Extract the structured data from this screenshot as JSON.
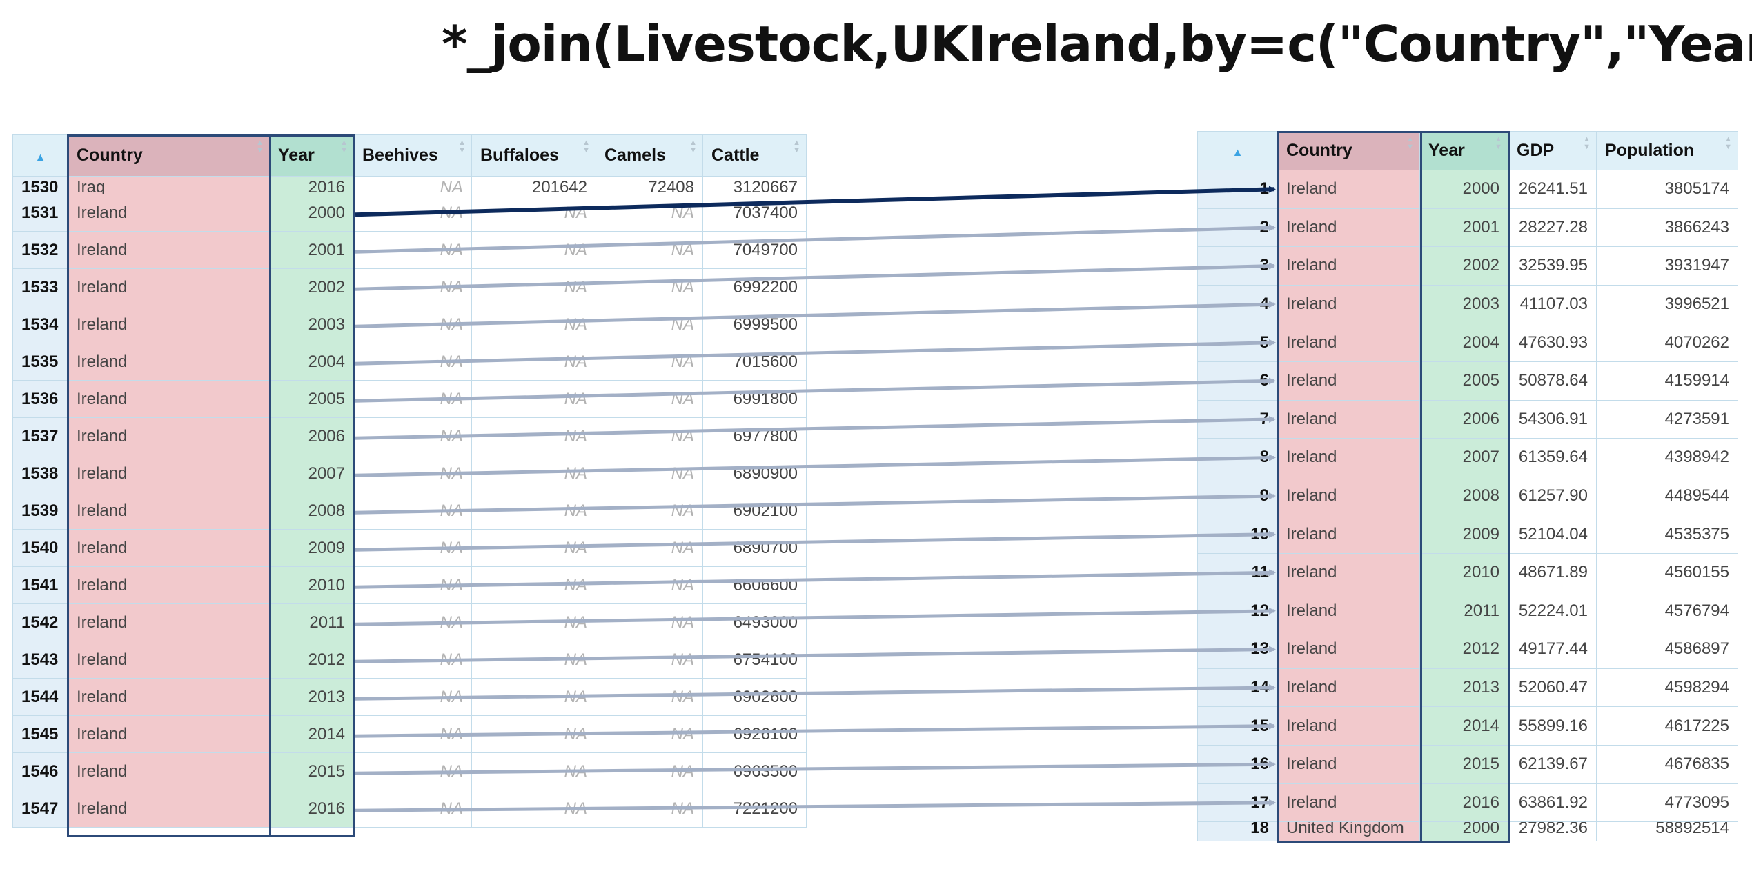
{
  "title": "*_join(Livestock,UKIreland,by=c(\"Country\",\"Year\"))",
  "livestock": {
    "columns": [
      "Country",
      "Year",
      "Beehives",
      "Buffaloes",
      "Camels",
      "Cattle"
    ],
    "top_partial": {
      "id": "1530",
      "country": "Iraq",
      "year": "2016",
      "beehives": "NA",
      "buffaloes": "201642",
      "camels": "72408",
      "cattle": "3120667"
    },
    "rows": [
      {
        "id": "1531",
        "country": "Ireland",
        "year": "2000",
        "beehives": "NA",
        "buffaloes": "NA",
        "camels": "NA",
        "cattle": "7037400"
      },
      {
        "id": "1532",
        "country": "Ireland",
        "year": "2001",
        "beehives": "NA",
        "buffaloes": "NA",
        "camels": "NA",
        "cattle": "7049700"
      },
      {
        "id": "1533",
        "country": "Ireland",
        "year": "2002",
        "beehives": "NA",
        "buffaloes": "NA",
        "camels": "NA",
        "cattle": "6992200"
      },
      {
        "id": "1534",
        "country": "Ireland",
        "year": "2003",
        "beehives": "NA",
        "buffaloes": "NA",
        "camels": "NA",
        "cattle": "6999500"
      },
      {
        "id": "1535",
        "country": "Ireland",
        "year": "2004",
        "beehives": "NA",
        "buffaloes": "NA",
        "camels": "NA",
        "cattle": "7015600"
      },
      {
        "id": "1536",
        "country": "Ireland",
        "year": "2005",
        "beehives": "NA",
        "buffaloes": "NA",
        "camels": "NA",
        "cattle": "6991800"
      },
      {
        "id": "1537",
        "country": "Ireland",
        "year": "2006",
        "beehives": "NA",
        "buffaloes": "NA",
        "camels": "NA",
        "cattle": "6977800"
      },
      {
        "id": "1538",
        "country": "Ireland",
        "year": "2007",
        "beehives": "NA",
        "buffaloes": "NA",
        "camels": "NA",
        "cattle": "6890900"
      },
      {
        "id": "1539",
        "country": "Ireland",
        "year": "2008",
        "beehives": "NA",
        "buffaloes": "NA",
        "camels": "NA",
        "cattle": "6902100"
      },
      {
        "id": "1540",
        "country": "Ireland",
        "year": "2009",
        "beehives": "NA",
        "buffaloes": "NA",
        "camels": "NA",
        "cattle": "6890700"
      },
      {
        "id": "1541",
        "country": "Ireland",
        "year": "2010",
        "beehives": "NA",
        "buffaloes": "NA",
        "camels": "NA",
        "cattle": "6606600"
      },
      {
        "id": "1542",
        "country": "Ireland",
        "year": "2011",
        "beehives": "NA",
        "buffaloes": "NA",
        "camels": "NA",
        "cattle": "6493000"
      },
      {
        "id": "1543",
        "country": "Ireland",
        "year": "2012",
        "beehives": "NA",
        "buffaloes": "NA",
        "camels": "NA",
        "cattle": "6754100"
      },
      {
        "id": "1544",
        "country": "Ireland",
        "year": "2013",
        "beehives": "NA",
        "buffaloes": "NA",
        "camels": "NA",
        "cattle": "6902600"
      },
      {
        "id": "1545",
        "country": "Ireland",
        "year": "2014",
        "beehives": "NA",
        "buffaloes": "NA",
        "camels": "NA",
        "cattle": "6926100"
      },
      {
        "id": "1546",
        "country": "Ireland",
        "year": "2015",
        "beehives": "NA",
        "buffaloes": "NA",
        "camels": "NA",
        "cattle": "6963500"
      },
      {
        "id": "1547",
        "country": "Ireland",
        "year": "2016",
        "beehives": "NA",
        "buffaloes": "NA",
        "camels": "NA",
        "cattle": "7221200"
      }
    ]
  },
  "ukireland": {
    "columns": [
      "Country",
      "Year",
      "GDP",
      "Population"
    ],
    "rows": [
      {
        "id": "1",
        "country": "Ireland",
        "year": "2000",
        "gdp": "26241.51",
        "population": "3805174"
      },
      {
        "id": "2",
        "country": "Ireland",
        "year": "2001",
        "gdp": "28227.28",
        "population": "3866243"
      },
      {
        "id": "3",
        "country": "Ireland",
        "year": "2002",
        "gdp": "32539.95",
        "population": "3931947"
      },
      {
        "id": "4",
        "country": "Ireland",
        "year": "2003",
        "gdp": "41107.03",
        "population": "3996521"
      },
      {
        "id": "5",
        "country": "Ireland",
        "year": "2004",
        "gdp": "47630.93",
        "population": "4070262"
      },
      {
        "id": "6",
        "country": "Ireland",
        "year": "2005",
        "gdp": "50878.64",
        "population": "4159914"
      },
      {
        "id": "7",
        "country": "Ireland",
        "year": "2006",
        "gdp": "54306.91",
        "population": "4273591"
      },
      {
        "id": "8",
        "country": "Ireland",
        "year": "2007",
        "gdp": "61359.64",
        "population": "4398942"
      },
      {
        "id": "9",
        "country": "Ireland",
        "year": "2008",
        "gdp": "61257.90",
        "population": "4489544"
      },
      {
        "id": "10",
        "country": "Ireland",
        "year": "2009",
        "gdp": "52104.04",
        "population": "4535375"
      },
      {
        "id": "11",
        "country": "Ireland",
        "year": "2010",
        "gdp": "48671.89",
        "population": "4560155"
      },
      {
        "id": "12",
        "country": "Ireland",
        "year": "2011",
        "gdp": "52224.01",
        "population": "4576794"
      },
      {
        "id": "13",
        "country": "Ireland",
        "year": "2012",
        "gdp": "49177.44",
        "population": "4586897"
      },
      {
        "id": "14",
        "country": "Ireland",
        "year": "2013",
        "gdp": "52060.47",
        "population": "4598294"
      },
      {
        "id": "15",
        "country": "Ireland",
        "year": "2014",
        "gdp": "55899.16",
        "population": "4617225"
      },
      {
        "id": "16",
        "country": "Ireland",
        "year": "2015",
        "gdp": "62139.67",
        "population": "4676835"
      },
      {
        "id": "17",
        "country": "Ireland",
        "year": "2016",
        "gdp": "63861.92",
        "population": "4773095"
      }
    ],
    "bottom_partial": {
      "id": "18",
      "country": "United Kingdom",
      "year": "2000",
      "gdp": "27982.36",
      "population": "58892514"
    }
  },
  "colors": {
    "country_fill": "#f2c9cc",
    "year_fill": "#cbecd9",
    "outline": "#2c4a78",
    "arrow_primary": "#0d2a5c",
    "arrow_secondary": "#a3b0c6"
  }
}
